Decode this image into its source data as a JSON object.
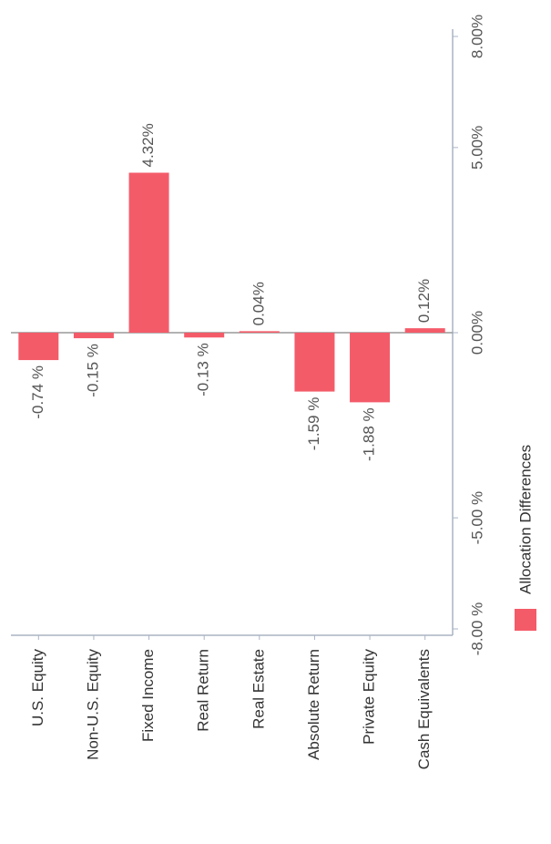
{
  "chart_data": {
    "type": "bar",
    "categories": [
      "U.S. Equity",
      "Non-U.S. Equity",
      "Fixed Income",
      "Real Return",
      "Real Estate",
      "Absolute Return",
      "Private Equity",
      "Cash Equivalents"
    ],
    "series": [
      {
        "name": "Allocation Differences",
        "color": "#f45b69",
        "values": [
          -0.74,
          -0.15,
          4.32,
          -0.13,
          0.04,
          -1.59,
          -1.88,
          0.12
        ],
        "value_labels": [
          "-0.74 %",
          "-0.15 %",
          "4.32%",
          "-0.13 %",
          "0.04%",
          "-1.59 %",
          "-1.88 %",
          "0.12%"
        ]
      }
    ],
    "ylim": [
      -8,
      8
    ],
    "yticks": [
      {
        "value": -8,
        "label": "-8.00 %"
      },
      {
        "value": -5,
        "label": "-5.00 %"
      },
      {
        "value": 0,
        "label": "0.00%"
      },
      {
        "value": 5,
        "label": "5.00%"
      },
      {
        "value": 8,
        "label": "8.00%"
      }
    ],
    "legend": "bottom"
  }
}
